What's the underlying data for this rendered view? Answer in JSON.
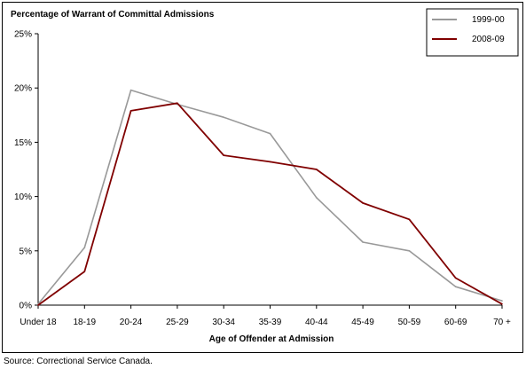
{
  "chart_data": {
    "type": "line",
    "title": "Percentage of Warrant of Committal Admissions",
    "xlabel": "Age of Offender at Admission",
    "ylabel": "",
    "categories": [
      "Under 18",
      "18-19",
      "20-24",
      "25-29",
      "30-34",
      "35-39",
      "40-44",
      "45-49",
      "50-59",
      "60-69",
      "70 +"
    ],
    "ylim": [
      0,
      25
    ],
    "yticks": [
      0,
      5,
      10,
      15,
      20,
      25
    ],
    "ytick_labels": [
      "0%",
      "5%",
      "10%",
      "15%",
      "20%",
      "25%"
    ],
    "grid": false,
    "legend_position": "top-right",
    "series": [
      {
        "name": "1999-00",
        "color": "#999999",
        "values": [
          0.1,
          5.3,
          19.8,
          18.5,
          17.3,
          15.8,
          9.9,
          5.8,
          5.0,
          1.7,
          0.4
        ]
      },
      {
        "name": "2008-09",
        "color": "#800000",
        "values": [
          0.0,
          3.1,
          17.9,
          18.6,
          13.8,
          13.2,
          12.5,
          9.4,
          7.9,
          2.5,
          0.1
        ]
      }
    ]
  },
  "footer": {
    "source": "Source:  Correctional Service Canada."
  }
}
